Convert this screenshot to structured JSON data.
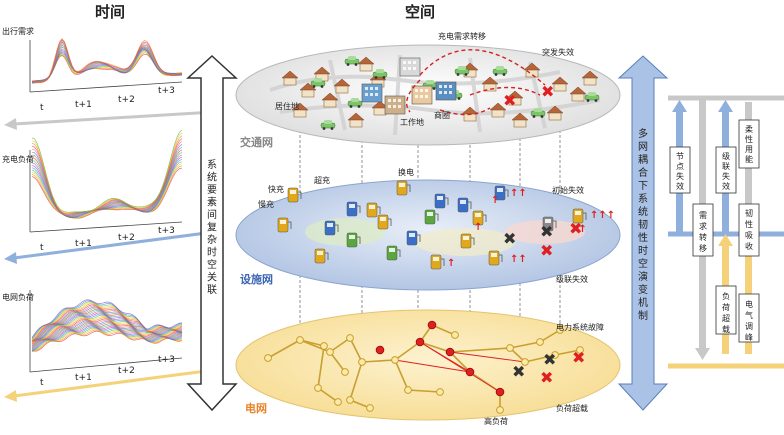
{
  "headers": {
    "time": "时间",
    "space": "空间"
  },
  "time_panels": [
    {
      "label": "出行需求",
      "ticks": [
        "t",
        "t+1",
        "t+2",
        "t+3"
      ],
      "arrow_color": "#c8c8c8"
    },
    {
      "label": "充电负荷",
      "ticks": [
        "t",
        "t+1",
        "t+2",
        "t+3"
      ],
      "arrow_color": "#8fb0dc"
    },
    {
      "label": "电网负荷",
      "ticks": [
        "t",
        "t+1",
        "t+2",
        "t+3"
      ],
      "arrow_color": "#f5d27a"
    }
  ],
  "left_arrow_text": "系统要素间复杂时空关联",
  "right_arrow_text": "多网耦合下系统韧性时空演变机制",
  "layers": {
    "transport": {
      "name": "交通网",
      "labels": {
        "migration": "充电需求转移",
        "sudden": "突发失效",
        "residential": "居住地",
        "work": "工作地",
        "commerce": "商圈"
      }
    },
    "facility": {
      "name": "设施网",
      "labels": {
        "fast": "快充",
        "super": "超充",
        "swap": "换电",
        "slow": "慢充",
        "initial": "初始失效",
        "cascade": "级联失效"
      }
    },
    "grid": {
      "name": "电网",
      "labels": {
        "fault": "电力系统故障",
        "overload": "负荷超载",
        "highload": "高负荷"
      }
    }
  },
  "right_boxes": {
    "node_failure": "节点失效",
    "demand_transfer": "需求转移",
    "load_overload": "负荷超载",
    "cascade_failure": "级联失效",
    "flexible_use": "柔性用能",
    "resilient_absorb": "韧性吸收",
    "power_peak": "电气调峰"
  },
  "colors": {
    "blue": "#8fb0dc",
    "gray": "#c8c8c8",
    "yellow": "#f5d27a",
    "red": "#e02020",
    "gold": "#c8a030"
  }
}
